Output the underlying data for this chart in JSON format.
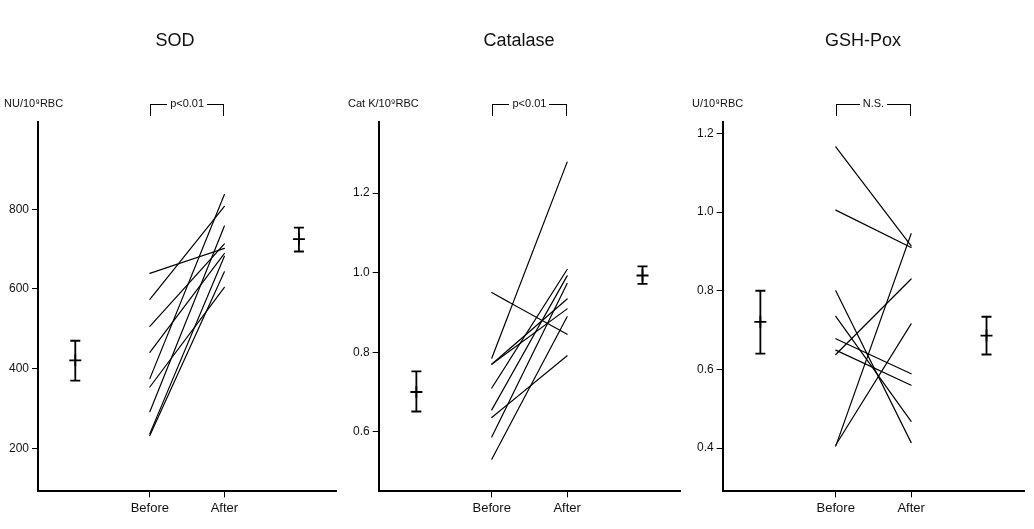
{
  "chart_data": [
    {
      "type": "line",
      "title": "SOD",
      "ylabel": "NU/10⁹RBC",
      "annotations": [
        "p<0.01"
      ],
      "grid": false,
      "legend": false,
      "marker": "none",
      "line_style": "solid",
      "categories": [
        null,
        "Before",
        "After",
        null
      ],
      "ylim": [
        92,
        1020
      ],
      "yticks": [
        200,
        400,
        600,
        800
      ],
      "series": [
        {
          "color": "#000000",
          "values": [
            null,
            639,
            702,
            null
          ]
        },
        {
          "color": "#000000",
          "values": [
            null,
            574,
            807,
            null
          ]
        },
        {
          "color": "#000000",
          "values": [
            null,
            506,
            713,
            null
          ]
        },
        {
          "color": "#000000",
          "values": [
            null,
            441,
            689,
            null
          ]
        },
        {
          "color": "#000000",
          "values": [
            null,
            375,
            837,
            null
          ]
        },
        {
          "color": "#000000",
          "values": [
            null,
            354,
            604,
            null
          ]
        },
        {
          "color": "#000000",
          "values": [
            null,
            292,
            758,
            null
          ]
        },
        {
          "color": "#000000",
          "values": [
            null,
            237,
            682,
            null
          ]
        },
        {
          "color": "#000000",
          "values": [
            null,
            232,
            643,
            null
          ]
        },
        {
          "type": "scatter",
          "marker": "cross",
          "color": "#000000",
          "values": [
            421,
            null,
            null,
            725
          ],
          "errors": [
            [
              370,
              470
            ],
            null,
            null,
            [
              694,
              754
            ]
          ]
        }
      ]
    },
    {
      "type": "line",
      "title": "Catalase",
      "ylabel": "Cat K/10⁹RBC",
      "annotations": [
        "p<0.01"
      ],
      "grid": false,
      "legend": false,
      "marker": "none",
      "line_style": "solid",
      "categories": [
        null,
        "Before",
        "After",
        null
      ],
      "ylim": [
        0.45,
        1.38
      ],
      "yticks": [
        0.6,
        0.8,
        {
          "value": 1,
          "label": "1.0"
        },
        1.2
      ],
      "series": [
        {
          "color": "#000000",
          "values": [
            null,
            0.95,
            0.845,
            null
          ]
        },
        {
          "color": "#000000",
          "values": [
            null,
            0.785,
            1.278,
            null
          ]
        },
        {
          "color": "#000000",
          "values": [
            null,
            0.77,
            0.934,
            null
          ]
        },
        {
          "color": "#000000",
          "values": [
            null,
            0.77,
            0.909,
            null
          ]
        },
        {
          "color": "#000000",
          "values": [
            null,
            0.71,
            1.008,
            null
          ]
        },
        {
          "color": "#000000",
          "values": [
            null,
            0.655,
            0.992,
            null
          ]
        },
        {
          "color": "#000000",
          "values": [
            null,
            0.636,
            0.791,
            null
          ]
        },
        {
          "color": "#000000",
          "values": [
            null,
            0.587,
            0.973,
            null
          ]
        },
        {
          "color": "#000000",
          "values": [
            null,
            0.531,
            0.889,
            null
          ]
        },
        {
          "type": "scatter",
          "marker": "cross",
          "color": "#000000",
          "values": [
            0.7,
            null,
            null,
            0.993
          ],
          "errors": [
            [
              0.651,
              0.752
            ],
            null,
            null,
            [
              0.972,
              1.016
            ]
          ]
        }
      ]
    },
    {
      "type": "line",
      "title": "GSH-Pox",
      "ylabel": "U/10⁹RBC",
      "annotations": [
        "N.S."
      ],
      "grid": false,
      "legend": false,
      "marker": "none",
      "line_style": "solid",
      "categories": [
        null,
        "Before",
        "After",
        null
      ],
      "ylim": [
        0.29,
        1.23
      ],
      "yticks": [
        0.4,
        0.6,
        0.8,
        {
          "value": 1,
          "label": "1.0"
        },
        1.2
      ],
      "series": [
        {
          "color": "#000000",
          "values": [
            null,
            1.166,
            0.914,
            null
          ]
        },
        {
          "color": "#000000",
          "values": [
            null,
            1.005,
            0.91,
            null
          ]
        },
        {
          "color": "#000000",
          "values": [
            null,
            0.8,
            0.414,
            null
          ]
        },
        {
          "color": "#000000",
          "values": [
            null,
            0.735,
            0.468,
            null
          ]
        },
        {
          "color": "#000000",
          "values": [
            null,
            0.678,
            0.589,
            null
          ]
        },
        {
          "color": "#000000",
          "values": [
            null,
            0.649,
            0.56,
            null
          ]
        },
        {
          "color": "#000000",
          "values": [
            null,
            0.638,
            0.83,
            null
          ]
        },
        {
          "color": "#000000",
          "values": [
            null,
            0.405,
            0.945,
            null
          ]
        },
        {
          "color": "#000000",
          "values": [
            null,
            0.408,
            0.716,
            null
          ]
        },
        {
          "type": "scatter",
          "marker": "cross",
          "color": "#000000",
          "values": [
            0.721,
            null,
            null,
            0.686
          ],
          "errors": [
            [
              0.64,
              0.8
            ],
            null,
            null,
            [
              0.638,
              0.734
            ]
          ]
        }
      ]
    }
  ]
}
